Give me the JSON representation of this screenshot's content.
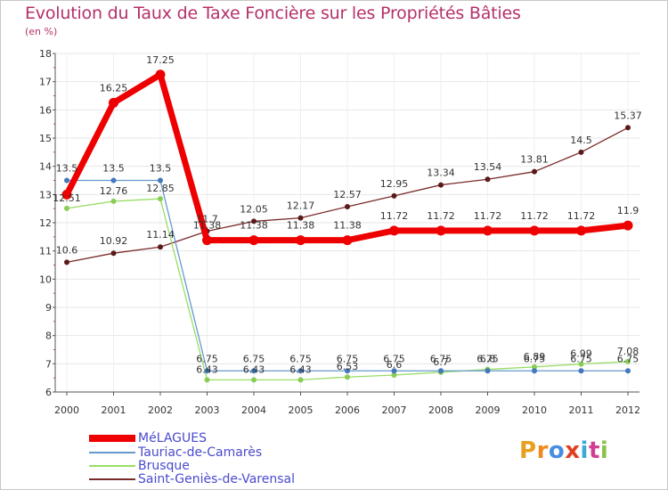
{
  "title": "Evolution du Taux de Taxe Foncière sur les Propriétés Bâties",
  "subtitle": "(en %)",
  "logo": {
    "text": "Proxiti",
    "colors": [
      "#e8a020",
      "#f08a1c",
      "#4a8de0",
      "#e04020",
      "#3aa8d8",
      "#d04090",
      "#8bc34a"
    ]
  },
  "chart_data": {
    "type": "line",
    "title": "Evolution du Taux de Taxe Foncière sur les Propriétés Bâties",
    "ylabel": "(en %)",
    "ylim": [
      6,
      18
    ],
    "yticks": [
      "6",
      "7",
      "8",
      "9",
      "10",
      "11",
      "12",
      "13",
      "14",
      "15",
      "16",
      "17",
      "18"
    ],
    "categories": [
      "2000",
      "2001",
      "2002",
      "2003",
      "2004",
      "2005",
      "2006",
      "2007",
      "2008",
      "2009",
      "2010",
      "2011",
      "2012"
    ],
    "series": [
      {
        "name": "Saint-Geniès-de-Varensal",
        "color": "#7a2a2a",
        "values": [
          10.6,
          10.92,
          11.14,
          11.7,
          12.05,
          12.17,
          12.57,
          12.95,
          13.34,
          13.54,
          13.81,
          14.5,
          15.37
        ],
        "labels": [
          "10.6",
          "10.92",
          "11.14",
          "11.7",
          "12.05",
          "12.17",
          "12.57",
          "12.95",
          "13.34",
          "13.54",
          "13.81",
          "14.5",
          "15.37"
        ]
      },
      {
        "name": "Brusque",
        "color": "#99dd66",
        "values": [
          12.51,
          12.76,
          12.85,
          6.43,
          6.43,
          6.43,
          6.53,
          6.6,
          6.7,
          6.8,
          6.89,
          6.99,
          7.08
        ],
        "labels": [
          "12.51",
          "12.76",
          "12.85",
          "6.43",
          "6.43",
          "6.43",
          "6.53",
          "6.6",
          "6.7",
          "6.8",
          "6.89",
          "6.99",
          "7.08"
        ]
      },
      {
        "name": "Tauriac-de-Camarès",
        "color": "#6699cc",
        "values": [
          13.5,
          13.5,
          13.5,
          6.75,
          6.75,
          6.75,
          6.75,
          6.75,
          6.75,
          6.75,
          6.75,
          6.75,
          6.75
        ],
        "labels": [
          "13.5",
          "13.5",
          "13.5",
          "6.75",
          "6.75",
          "6.75",
          "6.75",
          "6.75",
          "6.75",
          "6.75",
          "6.75",
          "6.75",
          "6.75"
        ]
      },
      {
        "name": "MéLAGUES",
        "color": "#ee0000",
        "values": [
          13,
          16.25,
          17.25,
          11.38,
          11.38,
          11.38,
          11.38,
          11.72,
          11.72,
          11.72,
          11.72,
          11.72,
          11.9
        ],
        "labels": [
          "",
          "16.25",
          "17.25",
          "11.38",
          "11.38",
          "11.38",
          "11.38",
          "11.72",
          "11.72",
          "11.72",
          "11.72",
          "11.72",
          "11.9"
        ]
      }
    ],
    "legend": [
      "MéLAGUES",
      "Tauriac-de-Camarès",
      "Brusque",
      "Saint-Geniès-de-Varensal"
    ]
  }
}
